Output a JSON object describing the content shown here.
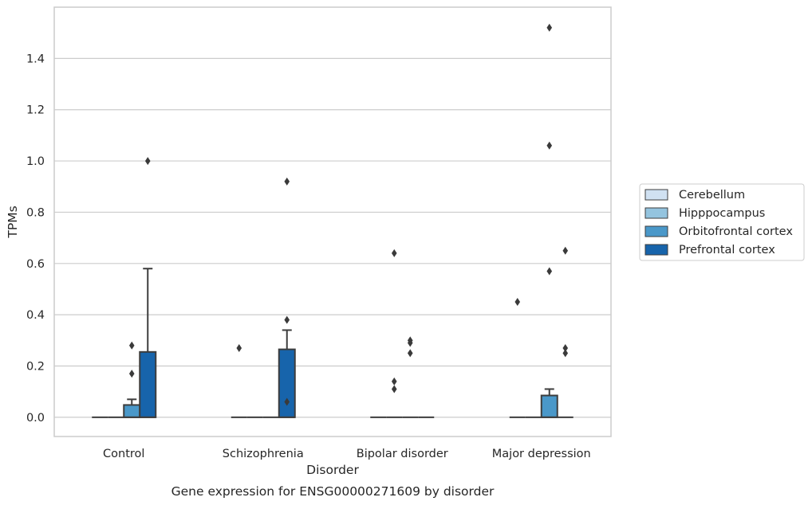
{
  "chart_data": {
    "type": "box",
    "title": "",
    "caption": "Gene expression for ENSG00000271609 by disorder",
    "xlabel": "Disorder",
    "ylabel": "TPMs",
    "ylim": [
      -0.075,
      1.6
    ],
    "yticks": [
      0.0,
      0.2,
      0.4,
      0.6,
      0.8,
      1.0,
      1.2,
      1.4
    ],
    "ytick_labels": [
      "0.0",
      "0.2",
      "0.4",
      "0.6",
      "0.8",
      "1.0",
      "1.2",
      "1.4"
    ],
    "grid": "horizontal",
    "legend_position": "right",
    "categories": [
      "Control",
      "Schizophrenia",
      "Bipolar disorder",
      "Major depression"
    ],
    "series": [
      {
        "name": "Cerebellum",
        "color": "#d0e1f2",
        "boxes": [
          {
            "q1": 0,
            "median": 0,
            "q3": 0,
            "whisker_low": 0,
            "whisker_high": 0,
            "outliers": []
          },
          {
            "q1": 0,
            "median": 0,
            "q3": 0,
            "whisker_low": 0,
            "whisker_high": 0,
            "outliers": [
              0.27
            ]
          },
          {
            "q1": 0,
            "median": 0,
            "q3": 0,
            "whisker_low": 0,
            "whisker_high": 0,
            "outliers": []
          },
          {
            "q1": 0,
            "median": 0,
            "q3": 0,
            "whisker_low": 0,
            "whisker_high": 0,
            "outliers": [
              0.45
            ]
          }
        ]
      },
      {
        "name": "Hipppocampus",
        "color": "#94c4df",
        "boxes": [
          {
            "q1": 0,
            "median": 0,
            "q3": 0,
            "whisker_low": 0,
            "whisker_high": 0,
            "outliers": []
          },
          {
            "q1": 0,
            "median": 0,
            "q3": 0,
            "whisker_low": 0,
            "whisker_high": 0,
            "outliers": []
          },
          {
            "q1": 0,
            "median": 0,
            "q3": 0,
            "whisker_low": 0,
            "whisker_high": 0,
            "outliers": [
              0.64,
              0.14,
              0.11
            ]
          },
          {
            "q1": 0,
            "median": 0,
            "q3": 0,
            "whisker_low": 0,
            "whisker_high": 0,
            "outliers": []
          }
        ]
      },
      {
        "name": "Orbitofrontal cortex",
        "color": "#4a98c9",
        "boxes": [
          {
            "q1": 0,
            "median": 0,
            "q3": 0.048,
            "whisker_low": 0,
            "whisker_high": 0.07,
            "outliers": [
              0.28,
              0.17
            ]
          },
          {
            "q1": 0,
            "median": 0,
            "q3": 0,
            "whisker_low": 0,
            "whisker_high": 0,
            "outliers": []
          },
          {
            "q1": 0,
            "median": 0,
            "q3": 0,
            "whisker_low": 0,
            "whisker_high": 0,
            "outliers": [
              0.3,
              0.29,
              0.25
            ]
          },
          {
            "q1": 0,
            "median": 0,
            "q3": 0.085,
            "whisker_low": 0,
            "whisker_high": 0.11,
            "outliers": [
              1.52,
              1.06,
              0.57
            ]
          }
        ]
      },
      {
        "name": "Prefrontal cortex",
        "color": "#1764ab",
        "boxes": [
          {
            "q1": 0,
            "median": 0,
            "q3": 0.255,
            "whisker_low": 0,
            "whisker_high": 0.58,
            "outliers": [
              1.0
            ]
          },
          {
            "q1": 0,
            "median": 0,
            "q3": 0.265,
            "whisker_low": 0,
            "whisker_high": 0.34,
            "outliers": [
              0.92,
              0.38,
              0.06
            ]
          },
          {
            "q1": 0,
            "median": 0,
            "q3": 0,
            "whisker_low": 0,
            "whisker_high": 0,
            "outliers": []
          },
          {
            "q1": 0,
            "median": 0,
            "q3": 0,
            "whisker_low": 0,
            "whisker_high": 0,
            "outliers": [
              0.65,
              0.27,
              0.25
            ]
          }
        ]
      }
    ]
  }
}
